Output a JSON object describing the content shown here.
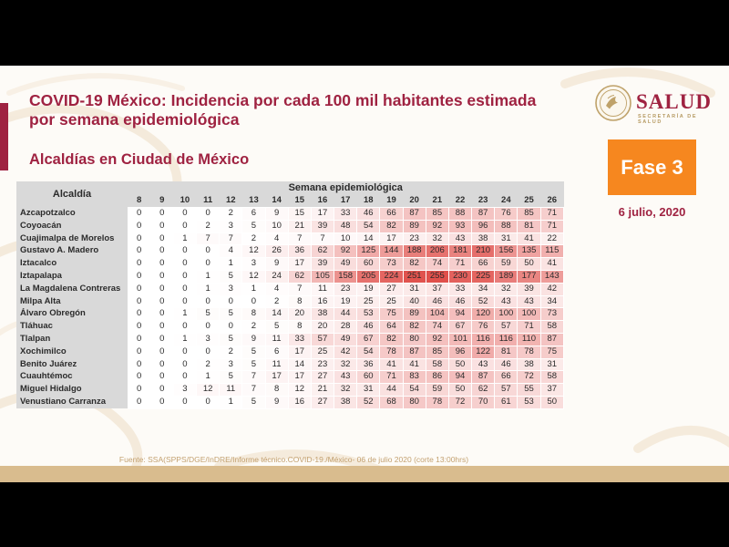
{
  "slide": {
    "title": "COVID-19 México: Incidencia por cada 100 mil habitantes estimada por semana epidemiológica",
    "subtitle": "Alcaldías en Ciudad de México",
    "logo": {
      "name": "SALUD",
      "subtitle": "SECRETARÍA DE SALUD"
    },
    "phase_badge": "Fase 3",
    "date": "6 julio, 2020",
    "footer_source": "Fuente: SSA(SPPS/DGE/InDRE/Informe técnico.COVID-19./México- 06 de julio 2020 (corte 13:00hrs)"
  },
  "chart_data": {
    "type": "heatmap",
    "title": "COVID-19 México: Incidencia por cada 100 mil habitantes estimada por semana epidemiológica",
    "subtitle": "Alcaldías en Ciudad de México",
    "row_header": "Alcaldía",
    "column_group_header": "Semana epidemiológica",
    "columns": [
      8,
      9,
      10,
      11,
      12,
      13,
      14,
      15,
      16,
      17,
      18,
      19,
      20,
      21,
      22,
      23,
      24,
      25,
      26
    ],
    "rows": [
      {
        "name": "Azcapotzalco",
        "values": [
          0,
          0,
          0,
          0,
          2,
          6,
          9,
          15,
          17,
          33,
          46,
          66,
          87,
          85,
          88,
          87,
          76,
          85,
          71
        ]
      },
      {
        "name": "Coyoacán",
        "values": [
          0,
          0,
          0,
          2,
          3,
          5,
          10,
          21,
          39,
          48,
          54,
          82,
          89,
          92,
          93,
          96,
          88,
          81,
          71
        ]
      },
      {
        "name": "Cuajimalpa de Morelos",
        "values": [
          0,
          0,
          1,
          7,
          7,
          2,
          4,
          7,
          7,
          10,
          14,
          17,
          23,
          32,
          43,
          38,
          31,
          41,
          22
        ]
      },
      {
        "name": "Gustavo A. Madero",
        "values": [
          0,
          0,
          0,
          0,
          4,
          12,
          26,
          36,
          62,
          92,
          125,
          144,
          188,
          206,
          181,
          210,
          156,
          135,
          115
        ]
      },
      {
        "name": "Iztacalco",
        "values": [
          0,
          0,
          0,
          0,
          1,
          3,
          9,
          17,
          39,
          49,
          60,
          73,
          82,
          74,
          71,
          66,
          59,
          50,
          41
        ]
      },
      {
        "name": "Iztapalapa",
        "values": [
          0,
          0,
          0,
          1,
          5,
          12,
          24,
          62,
          105,
          158,
          205,
          224,
          251,
          255,
          230,
          225,
          189,
          177,
          143
        ]
      },
      {
        "name": "La Magdalena Contreras",
        "values": [
          0,
          0,
          0,
          1,
          3,
          1,
          4,
          7,
          11,
          23,
          19,
          27,
          31,
          37,
          33,
          34,
          32,
          39,
          42
        ]
      },
      {
        "name": "Milpa Alta",
        "values": [
          0,
          0,
          0,
          0,
          0,
          0,
          2,
          8,
          16,
          19,
          25,
          25,
          40,
          46,
          46,
          52,
          43,
          43,
          34
        ]
      },
      {
        "name": "Álvaro Obregón",
        "values": [
          0,
          0,
          1,
          5,
          5,
          8,
          14,
          20,
          38,
          44,
          53,
          75,
          89,
          104,
          94,
          120,
          100,
          100,
          73
        ]
      },
      {
        "name": "Tláhuac",
        "values": [
          0,
          0,
          0,
          0,
          0,
          2,
          5,
          8,
          20,
          28,
          46,
          64,
          82,
          74,
          67,
          76,
          57,
          71,
          58
        ]
      },
      {
        "name": "Tlalpan",
        "values": [
          0,
          0,
          1,
          3,
          5,
          9,
          11,
          33,
          57,
          49,
          67,
          82,
          80,
          92,
          101,
          116,
          116,
          110,
          87
        ]
      },
      {
        "name": "Xochimilco",
        "values": [
          0,
          0,
          0,
          0,
          2,
          5,
          6,
          17,
          25,
          42,
          54,
          78,
          87,
          85,
          96,
          122,
          81,
          78,
          75
        ]
      },
      {
        "name": "Benito Juárez",
        "values": [
          0,
          0,
          0,
          2,
          3,
          5,
          11,
          14,
          23,
          32,
          36,
          41,
          41,
          58,
          50,
          43,
          46,
          38,
          31
        ]
      },
      {
        "name": "Cuauhtémoc",
        "values": [
          0,
          0,
          0,
          1,
          5,
          7,
          17,
          17,
          27,
          43,
          60,
          71,
          83,
          86,
          94,
          87,
          66,
          72,
          58
        ]
      },
      {
        "name": "Miguel Hidalgo",
        "values": [
          0,
          0,
          3,
          12,
          11,
          7,
          8,
          12,
          21,
          32,
          31,
          44,
          54,
          59,
          50,
          62,
          57,
          55,
          37
        ]
      },
      {
        "name": "Venustiano Carranza",
        "values": [
          0,
          0,
          0,
          0,
          1,
          5,
          9,
          16,
          27,
          38,
          52,
          68,
          80,
          78,
          72,
          70,
          61,
          53,
          50
        ]
      }
    ],
    "value_range": [
      0,
      255
    ],
    "heat_color_min": "#ffffff",
    "heat_color_max": "#e0504b",
    "legend_position": "none",
    "grid": false
  },
  "colors": {
    "accent_maroon": "#9f2241",
    "badge_orange": "#f6871f",
    "tan_band": "#d9bc8e",
    "table_header_gray": "#d9d9d9",
    "logo_gold": "#b69a62",
    "footer_text": "#c3a171"
  }
}
